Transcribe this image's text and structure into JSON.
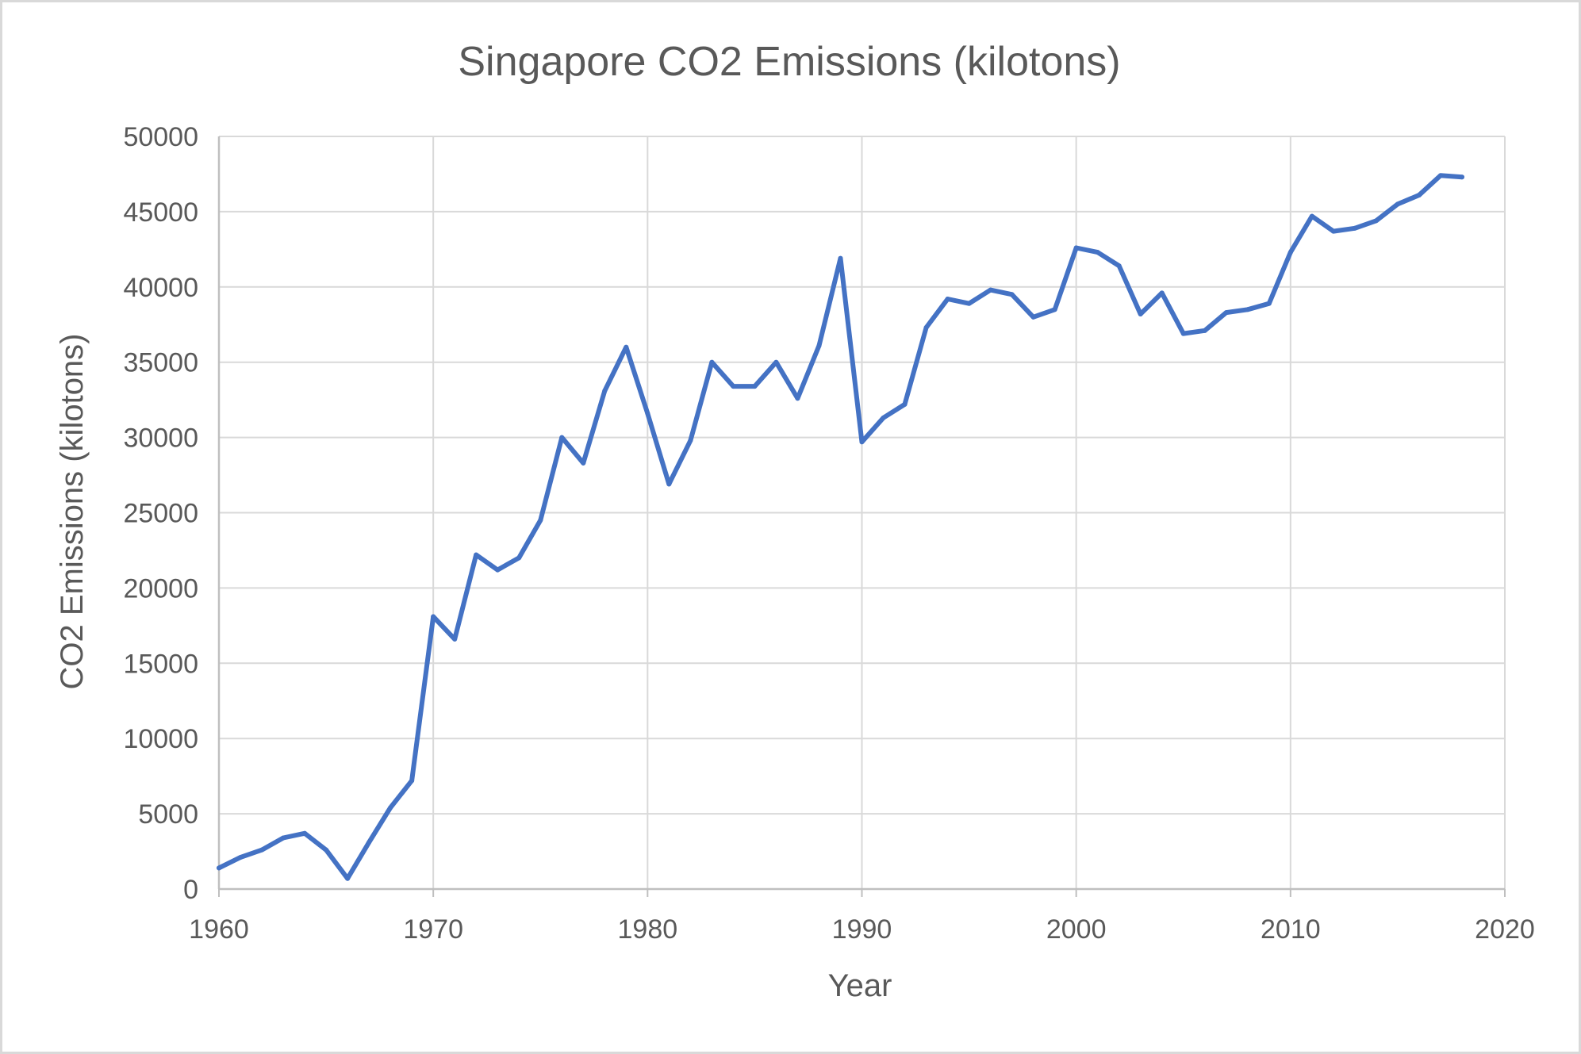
{
  "chart_data": {
    "type": "line",
    "title": "Singapore CO2 Emissions (kilotons)",
    "xlabel": "Year",
    "ylabel": "CO2 Emissions (kilotons)",
    "xlim": [
      1960,
      2020
    ],
    "ylim": [
      0,
      50000
    ],
    "x_ticks": [
      1960,
      1970,
      1980,
      1990,
      2000,
      2010,
      2020
    ],
    "y_ticks": [
      0,
      5000,
      10000,
      15000,
      20000,
      25000,
      30000,
      35000,
      40000,
      45000,
      50000
    ],
    "grid": true,
    "legend": "none",
    "colors": {
      "line": "#4472C4",
      "grid": "#D9D9D9",
      "axis": "#BFBFBF",
      "text": "#595959",
      "border": "#D9D9D9"
    },
    "series": [
      {
        "x": [
          1960,
          1961,
          1962,
          1963,
          1964,
          1965,
          1966,
          1967,
          1968,
          1969,
          1970,
          1971,
          1972,
          1973,
          1974,
          1975,
          1976,
          1977,
          1978,
          1979,
          1980,
          1981,
          1982,
          1983,
          1984,
          1985,
          1986,
          1987,
          1988,
          1989,
          1990,
          1991,
          1992,
          1993,
          1994,
          1995,
          1996,
          1997,
          1998,
          1999,
          2000,
          2001,
          2002,
          2003,
          2004,
          2005,
          2006,
          2007,
          2008,
          2009,
          2010,
          2011,
          2012,
          2013,
          2014,
          2015,
          2016,
          2017,
          2018
        ],
        "values": [
          1400,
          2100,
          2600,
          3400,
          3700,
          2600,
          700,
          3100,
          5400,
          7200,
          18100,
          16600,
          22200,
          21200,
          22000,
          24500,
          30000,
          28300,
          33100,
          36000,
          31600,
          26900,
          29800,
          35000,
          33400,
          33400,
          35000,
          32600,
          36100,
          41900,
          29700,
          31300,
          32200,
          37300,
          39200,
          38900,
          39800,
          39500,
          38000,
          38500,
          42600,
          42300,
          41400,
          38200,
          39600,
          36900,
          37100,
          38300,
          38500,
          38900,
          42300,
          44700,
          43700,
          43900,
          44400,
          45500,
          46100,
          47400,
          47300
        ]
      }
    ]
  }
}
